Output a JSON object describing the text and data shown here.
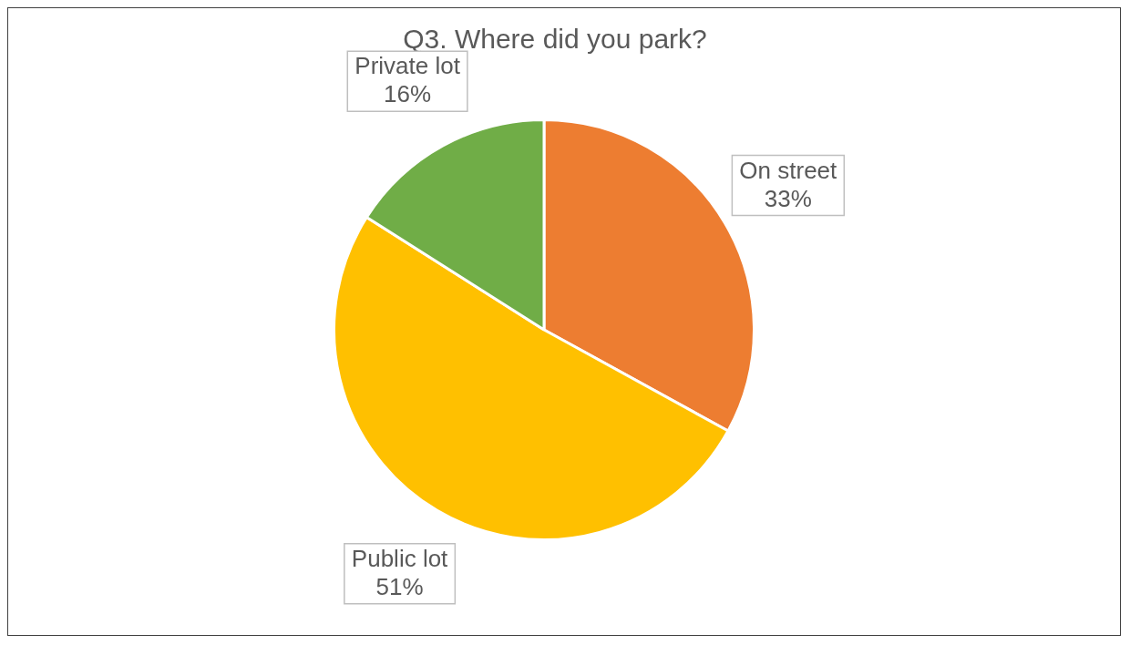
{
  "chart_data": {
    "type": "pie",
    "title": "Q3. Where did you park?",
    "categories": [
      "On street",
      "Public lot",
      "Private lot"
    ],
    "values": [
      33,
      51,
      16
    ],
    "colors": [
      "#ed7d31",
      "#ffc000",
      "#70ad47"
    ],
    "value_labels": [
      "33%",
      "51%",
      "16%"
    ],
    "legend": false
  }
}
